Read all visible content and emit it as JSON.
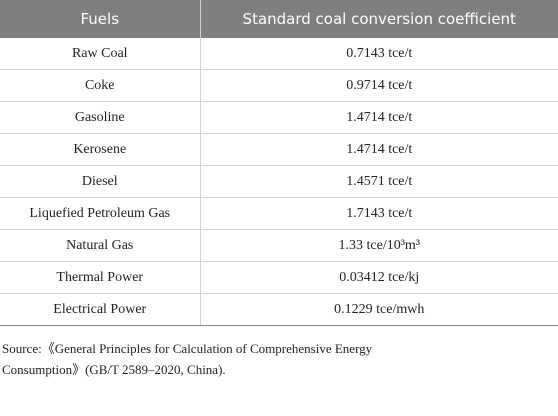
{
  "table": {
    "header": [
      "Fuels",
      "Standard coal conversion coefficient"
    ],
    "rows": [
      [
        "Raw Coal",
        "0.7143 tce/t"
      ],
      [
        "Coke",
        "0.9714 tce/t"
      ],
      [
        "Gasoline",
        "1.4714 tce/t"
      ],
      [
        "Kerosene",
        "1.4714 tce/t"
      ],
      [
        "Diesel",
        "1.4571 tce/t"
      ],
      [
        "Liquefied Petroleum Gas",
        "1.7143 tce/t"
      ],
      [
        "Natural Gas",
        "1.33 tce/10³m³"
      ],
      [
        "Thermal Power",
        "0.03412 tce/kj"
      ],
      [
        "Electrical Power",
        "0.1229 tce/mwh"
      ]
    ]
  },
  "source": "Source:《General Principles for Calculation of Comprehensive Energy Consumption》(GB/T 2589–2020, China)."
}
